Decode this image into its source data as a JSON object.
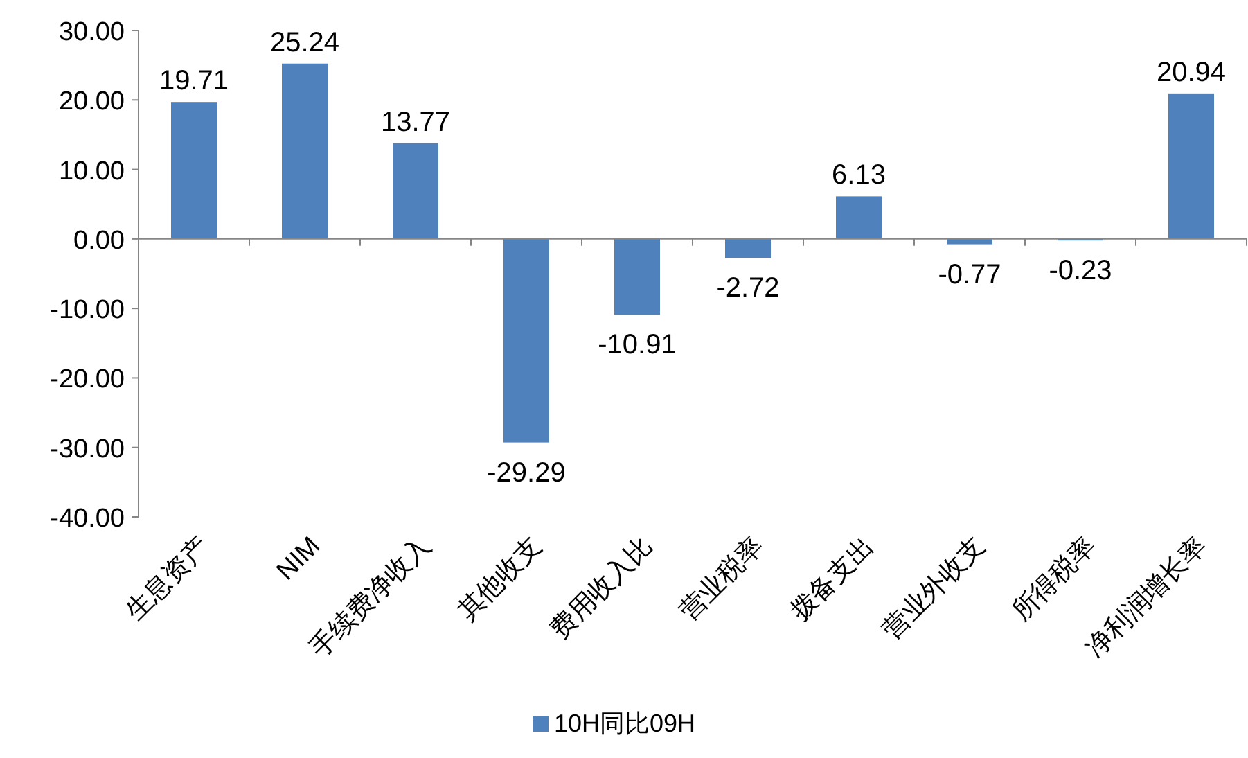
{
  "chart_data": {
    "type": "bar",
    "categories": [
      "生息资产",
      "NIM",
      "手续费净收入",
      "其他收支",
      "费用收入比",
      "营业税率",
      "拨备支出",
      "营业外收支",
      "所得税率",
      "净利润增长率"
    ],
    "series": [
      {
        "name": "10H同比09H",
        "color": "#4f81bd",
        "values": [
          19.71,
          25.24,
          13.77,
          -29.29,
          -10.91,
          -2.72,
          6.13,
          -0.77,
          -0.23,
          20.94
        ]
      }
    ],
    "ylim": [
      -40,
      30
    ],
    "yticks": [
      {
        "value": -40,
        "label": "-40.00"
      },
      {
        "value": -30,
        "label": "-30.00"
      },
      {
        "value": -20,
        "label": "-20.00"
      },
      {
        "value": -10,
        "label": "-10.00"
      },
      {
        "value": 0,
        "label": "0.00"
      },
      {
        "value": 10,
        "label": "10.00"
      },
      {
        "value": 20,
        "label": "20.00"
      },
      {
        "value": 30,
        "label": "30.00"
      }
    ],
    "data_labels": true,
    "legend": "bottom"
  }
}
